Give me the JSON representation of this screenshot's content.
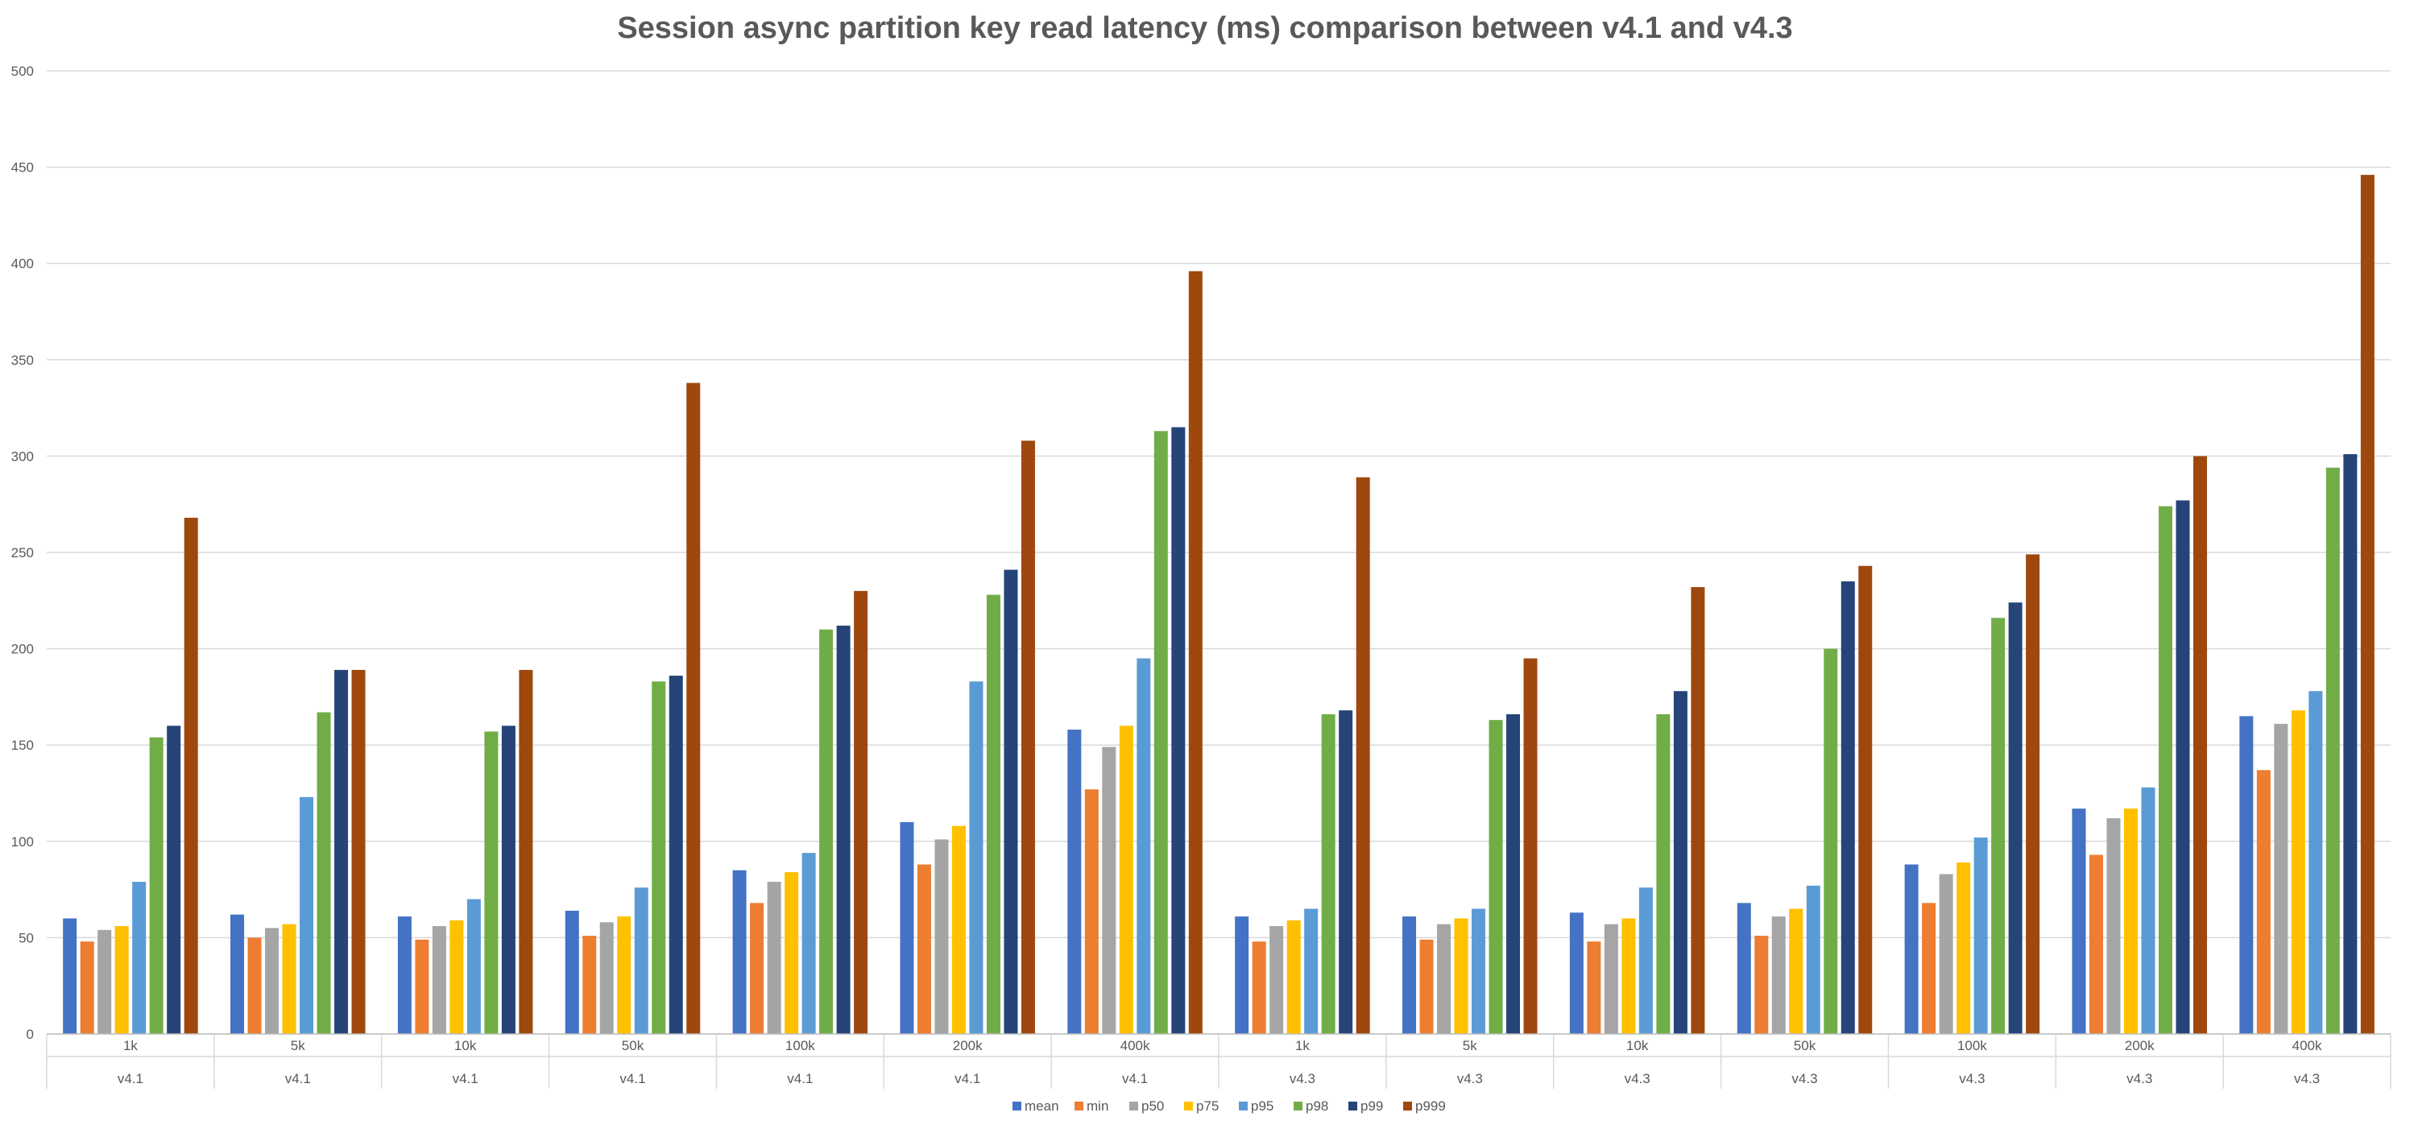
{
  "chart_data": {
    "type": "bar",
    "title": "Session async partition key read latency (ms) comparison between v4.1 and v4.3",
    "xlabel": "",
    "ylabel": "",
    "ylim": [
      0,
      500
    ],
    "yticks": [
      0,
      50,
      100,
      150,
      200,
      250,
      300,
      350,
      400,
      450,
      500
    ],
    "grid": true,
    "legend_position": "bottom",
    "categories": [
      "1k",
      "5k",
      "10k",
      "50k",
      "100k",
      "200k",
      "400k",
      "1k",
      "5k",
      "10k",
      "50k",
      "100k",
      "200k",
      "400k"
    ],
    "groups": [
      "v4.1",
      "v4.1",
      "v4.1",
      "v4.1",
      "v4.1",
      "v4.1",
      "v4.1",
      "v4.3",
      "v4.3",
      "v4.3",
      "v4.3",
      "v4.3",
      "v4.3",
      "v4.3"
    ],
    "series": [
      {
        "name": "mean",
        "color": "#4472C4",
        "values": [
          60,
          62,
          61,
          64,
          85,
          110,
          158,
          61,
          61,
          63,
          68,
          88,
          117,
          165
        ]
      },
      {
        "name": "min",
        "color": "#ED7D31",
        "values": [
          48,
          50,
          49,
          51,
          68,
          88,
          127,
          48,
          49,
          48,
          51,
          68,
          93,
          137
        ]
      },
      {
        "name": "p50",
        "color": "#A5A5A5",
        "values": [
          54,
          55,
          56,
          58,
          79,
          101,
          149,
          56,
          57,
          57,
          61,
          83,
          112,
          161
        ]
      },
      {
        "name": "p75",
        "color": "#FFC000",
        "values": [
          56,
          57,
          59,
          61,
          84,
          108,
          160,
          59,
          60,
          60,
          65,
          89,
          117,
          168
        ]
      },
      {
        "name": "p95",
        "color": "#5B9BD5",
        "values": [
          79,
          123,
          70,
          76,
          94,
          183,
          195,
          65,
          65,
          76,
          77,
          102,
          128,
          178
        ]
      },
      {
        "name": "p98",
        "color": "#70AD47",
        "values": [
          154,
          167,
          157,
          183,
          210,
          228,
          313,
          166,
          163,
          166,
          200,
          216,
          274,
          294
        ]
      },
      {
        "name": "p99",
        "color": "#264478",
        "values": [
          160,
          189,
          160,
          186,
          212,
          241,
          315,
          168,
          166,
          178,
          235,
          224,
          277,
          301
        ]
      },
      {
        "name": "p999",
        "color": "#9E480E",
        "values": [
          268,
          189,
          189,
          338,
          230,
          308,
          396,
          289,
          195,
          232,
          243,
          249,
          300,
          446
        ]
      }
    ]
  }
}
